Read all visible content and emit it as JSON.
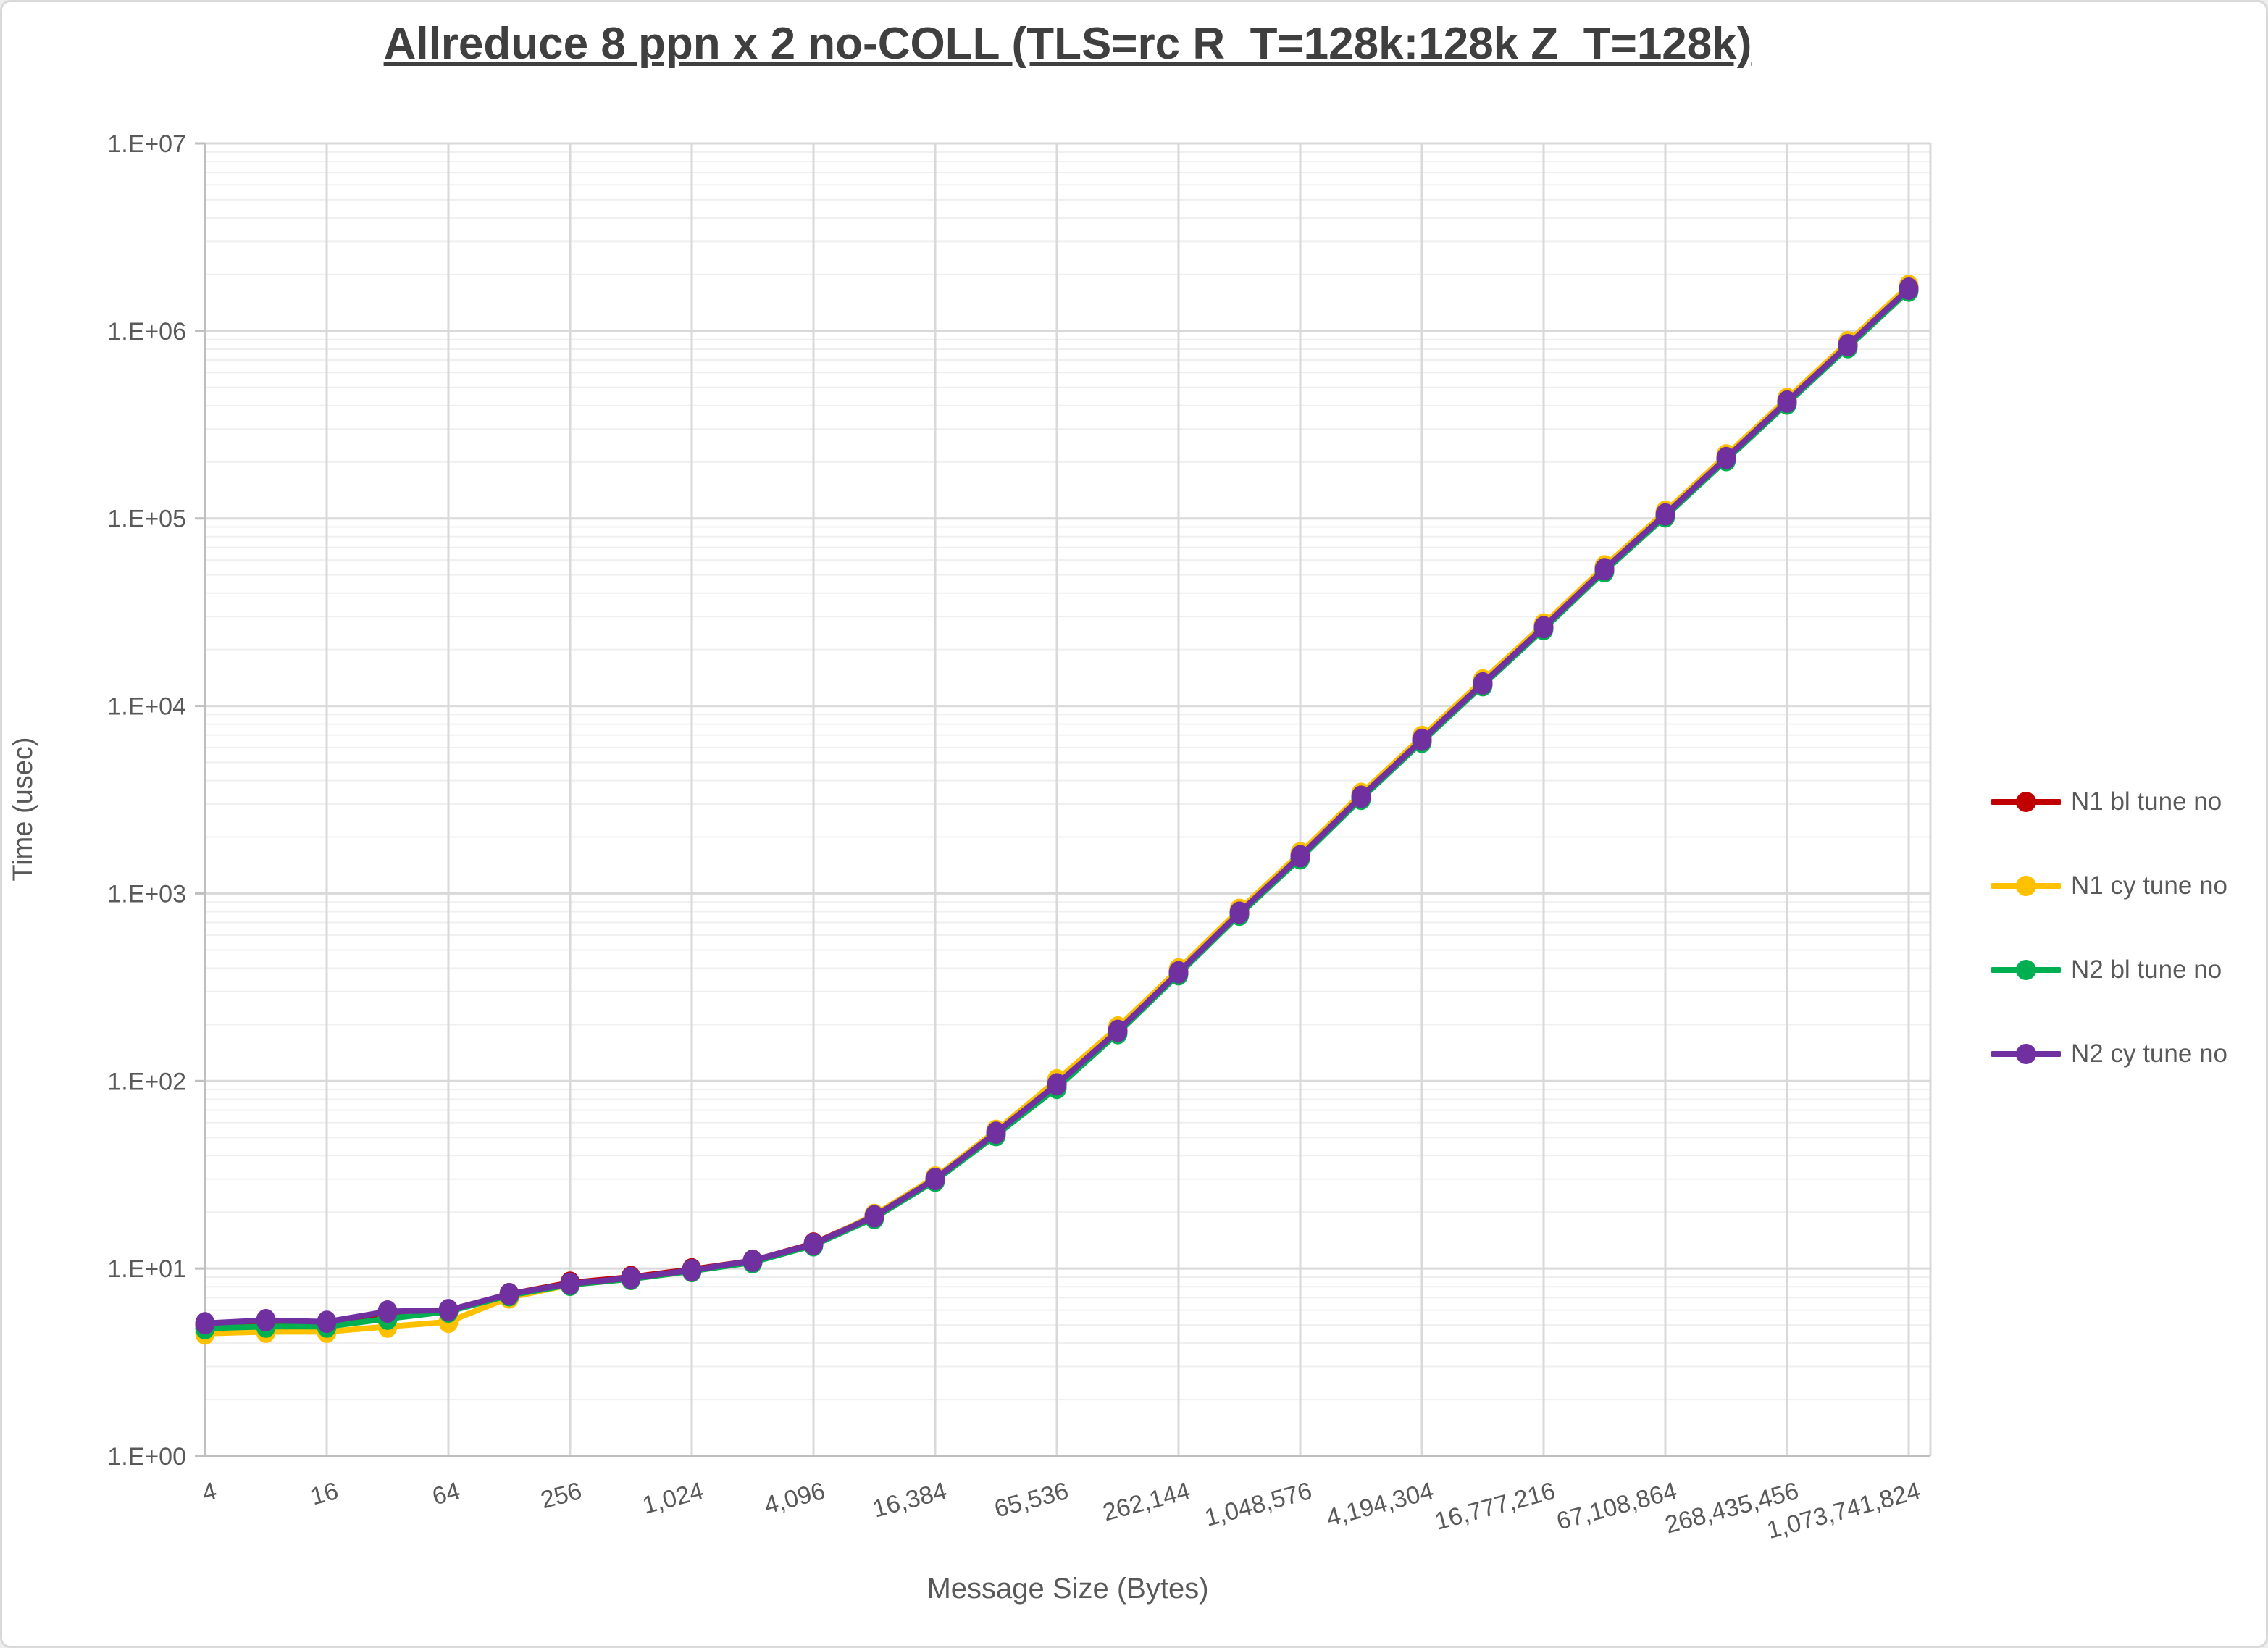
{
  "page": {
    "background": "#FFFFFF",
    "border_color": "#D9D9D9"
  },
  "colors": {
    "title_text": "#3F3F3F",
    "axis_text": "#595959",
    "grid_major": "#D9D9D9",
    "grid_minor": "#EFEFEF",
    "axis_line": "#BFBFBF"
  },
  "chart_data": {
    "type": "line",
    "title": "Allreduce 8 ppn x 2 no-COLL (TLS=rc R_T=128k:128k Z_T=128k)",
    "xlabel": "Message Size (Bytes)",
    "ylabel": "Time (usec)",
    "x_scale": "log2",
    "y_scale": "log10",
    "ylim": [
      1,
      10000000
    ],
    "grid": true,
    "legend_position": "right",
    "x": [
      4,
      8,
      16,
      32,
      64,
      128,
      256,
      512,
      1024,
      2048,
      4096,
      8192,
      16384,
      32768,
      65536,
      131072,
      262144,
      524288,
      1048576,
      2097152,
      4194304,
      8388608,
      16777216,
      33554432,
      67108864,
      134217728,
      268435456,
      536870912,
      1073741824
    ],
    "x_tick_labels": [
      "4",
      "16",
      "64",
      "256",
      "1,024",
      "4,096",
      "16,384",
      "65,536",
      "262,144",
      "1,048,576",
      "4,194,304",
      "16,777,216",
      "67,108,864",
      "268,435,456",
      "1,073,741,824"
    ],
    "y_tick_labels": [
      "1.E+00",
      "1.E+01",
      "1.E+02",
      "1.E+03",
      "1.E+04",
      "1.E+05",
      "1.E+06",
      "1.E+07"
    ],
    "series": [
      {
        "name": "N1 bl tune no",
        "color": "#C00000",
        "values": [
          5.0,
          5.1,
          5.1,
          5.8,
          5.9,
          7.3,
          8.4,
          9.0,
          9.9,
          11.0,
          13.6,
          19.1,
          30.1,
          53.2,
          96.5,
          186,
          382,
          794,
          1590,
          3300,
          6630,
          13260,
          26400,
          53800,
          105400,
          211000,
          421000,
          843000,
          1690000
        ]
      },
      {
        "name": "N1 cy tune no",
        "color": "#FFC000",
        "values": [
          4.5,
          4.6,
          4.6,
          4.9,
          5.2,
          7.0,
          8.2,
          8.8,
          9.7,
          10.9,
          13.4,
          19.3,
          30.6,
          54.2,
          101,
          193,
          394,
          818,
          1640,
          3400,
          6840,
          13700,
          27200,
          55500,
          108500,
          217000,
          434000,
          870000,
          1740000
        ]
      },
      {
        "name": "N2 bl tune no",
        "color": "#00B050",
        "values": [
          4.8,
          4.9,
          4.9,
          5.4,
          5.9,
          7.2,
          8.2,
          8.8,
          9.7,
          10.8,
          13.3,
          18.6,
          29.4,
          51.5,
          92,
          180,
          371,
          771,
          1540,
          3200,
          6440,
          12900,
          25700,
          52300,
          102500,
          205000,
          410000,
          819000,
          1640000
        ]
      },
      {
        "name": "N2 cy tune no",
        "color": "#7030A0",
        "values": [
          5.1,
          5.3,
          5.2,
          5.9,
          6.0,
          7.3,
          8.3,
          8.9,
          9.8,
          11.0,
          13.5,
          19.0,
          30.0,
          53.0,
          96,
          185,
          380,
          790,
          1580,
          3280,
          6600,
          13200,
          26300,
          53600,
          105000,
          210000,
          420000,
          840000,
          1680000
        ]
      }
    ]
  }
}
